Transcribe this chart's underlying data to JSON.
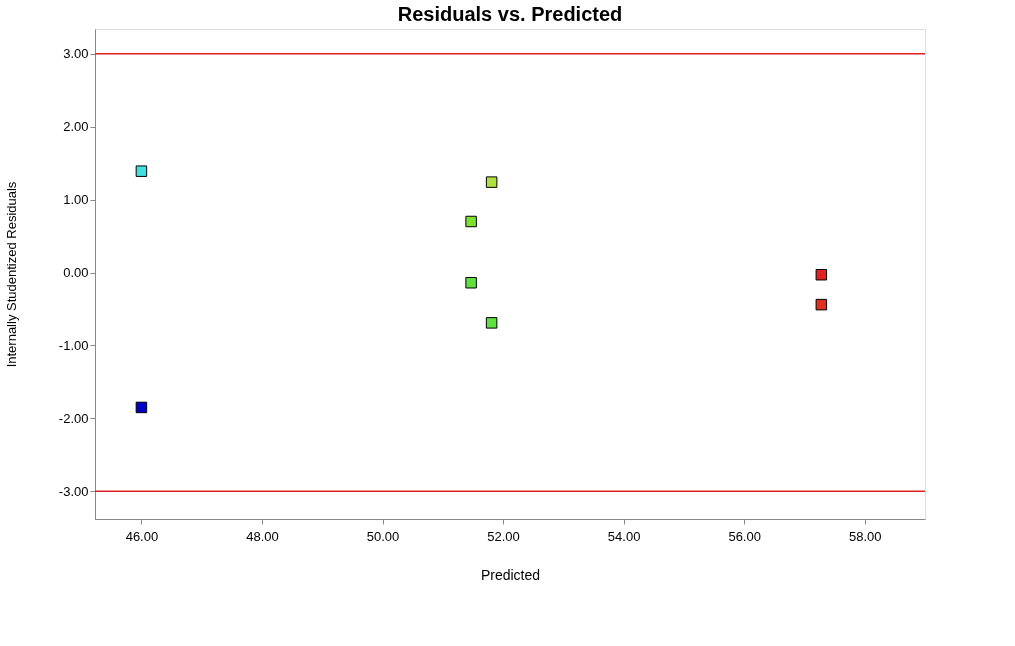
{
  "chart_data": {
    "type": "scatter",
    "title": "Residuals vs. Predicted",
    "xlabel": "Predicted",
    "ylabel": "Internally Studentized Residuals",
    "x": [
      46.0,
      46.0,
      51.81,
      51.47,
      51.47,
      51.81,
      57.28,
      57.28
    ],
    "values": [
      1.39,
      -1.85,
      1.24,
      0.7,
      -0.14,
      -0.69,
      -0.03,
      -0.44
    ],
    "colors": [
      "#40e0e0",
      "#0000cc",
      "#b0e040",
      "#80e030",
      "#60e040",
      "#60e040",
      "#e02020",
      "#e03020"
    ],
    "marker": "square",
    "grid": false,
    "xlim": [
      45.23,
      59.0
    ],
    "xticks": [
      {
        "value": 46,
        "label": "46.00"
      },
      {
        "value": 48,
        "label": "48.00"
      },
      {
        "value": 50,
        "label": "50.00"
      },
      {
        "value": 52,
        "label": "52.00"
      },
      {
        "value": 54,
        "label": "54.00"
      },
      {
        "value": 56,
        "label": "56.00"
      },
      {
        "value": 58,
        "label": "58.00"
      }
    ],
    "ylim": [
      -3.38,
      3.34
    ],
    "yticks": [
      {
        "value": -3,
        "label": "-3.00"
      },
      {
        "value": -2,
        "label": "-2.00"
      },
      {
        "value": -1,
        "label": "-1.00"
      },
      {
        "value": 0,
        "label": "0.00"
      },
      {
        "value": 1,
        "label": "1.00"
      },
      {
        "value": 2,
        "label": "2.00"
      },
      {
        "value": 3,
        "label": "3.00"
      }
    ],
    "ref_lines": [
      {
        "axis": "y",
        "value": 3,
        "color": "#e02020"
      },
      {
        "axis": "y",
        "value": -3,
        "color": "#e02020"
      }
    ]
  }
}
